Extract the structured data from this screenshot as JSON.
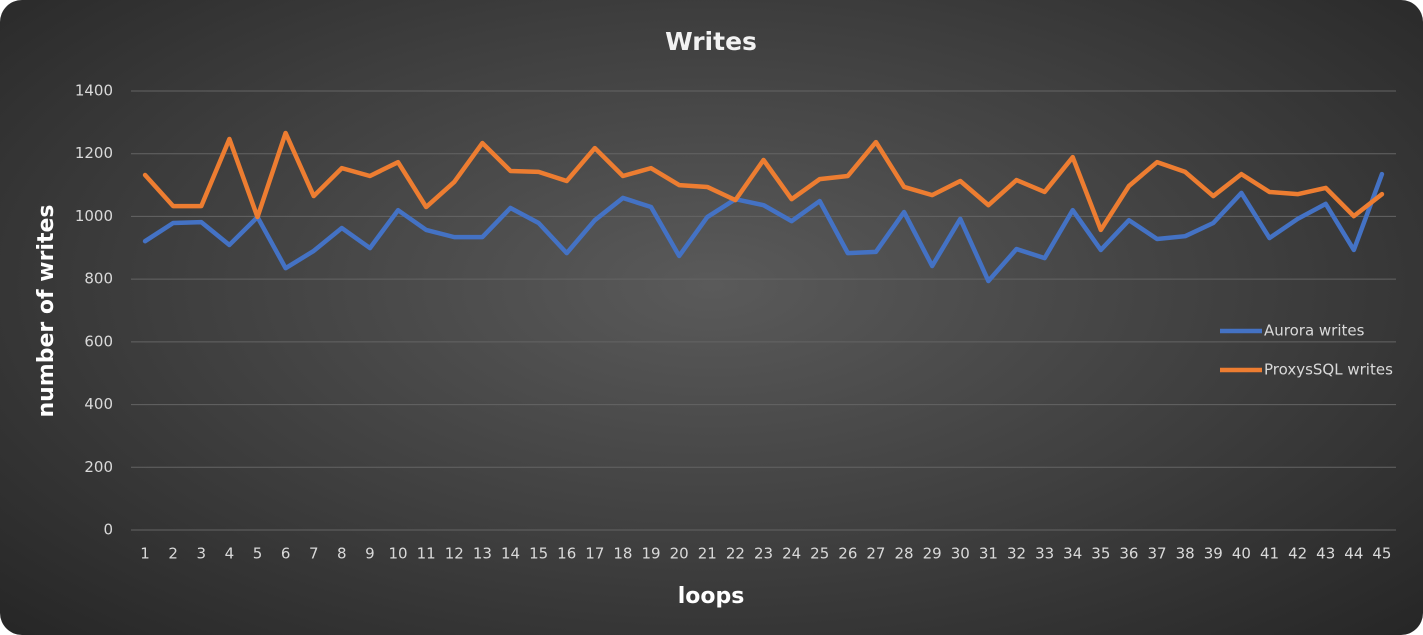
{
  "chart_data": {
    "type": "line",
    "title": "Writes",
    "x_label": "loops",
    "y_label": "number of writes",
    "categories": [
      "1",
      "2",
      "3",
      "4",
      "5",
      "6",
      "7",
      "8",
      "9",
      "10",
      "11",
      "12",
      "13",
      "14",
      "15",
      "16",
      "17",
      "18",
      "19",
      "20",
      "21",
      "22",
      "23",
      "24",
      "25",
      "26",
      "27",
      "28",
      "29",
      "30",
      "31",
      "32",
      "33",
      "34",
      "35",
      "36",
      "37",
      "38",
      "39",
      "40",
      "41",
      "42",
      "43",
      "44",
      "45"
    ],
    "series": [
      {
        "name": "Aurora writes",
        "color": "#4472c4",
        "values": [
          921,
          979,
          982,
          909,
          998,
          835,
          890,
          963,
          899,
          1020,
          957,
          934,
          934,
          1027,
          979,
          883,
          988,
          1059,
          1030,
          874,
          998,
          1055,
          1036,
          985,
          1049,
          883,
          887,
          1014,
          842,
          992,
          794,
          896,
          867,
          1020,
          893,
          988,
          928,
          937,
          979,
          1075,
          931,
          992,
          1040,
          893,
          1135
        ]
      },
      {
        "name": "ProxysSQL writes",
        "color": "#ed7d31",
        "values": [
          1132,
          1033,
          1033,
          1247,
          998,
          1266,
          1065,
          1154,
          1129,
          1173,
          1030,
          1110,
          1234,
          1145,
          1142,
          1113,
          1218,
          1129,
          1154,
          1100,
          1094,
          1052,
          1180,
          1055,
          1119,
          1129,
          1237,
          1094,
          1068,
          1113,
          1036,
          1116,
          1078,
          1189,
          957,
          1097,
          1173,
          1142,
          1065,
          1135,
          1078,
          1071,
          1091,
          1001,
          1071
        ]
      }
    ],
    "ylim": [
      0,
      1400
    ],
    "yticks": [
      0,
      200,
      400,
      600,
      800,
      1000,
      1200,
      1400
    ],
    "grid": true,
    "legend": "right"
  }
}
